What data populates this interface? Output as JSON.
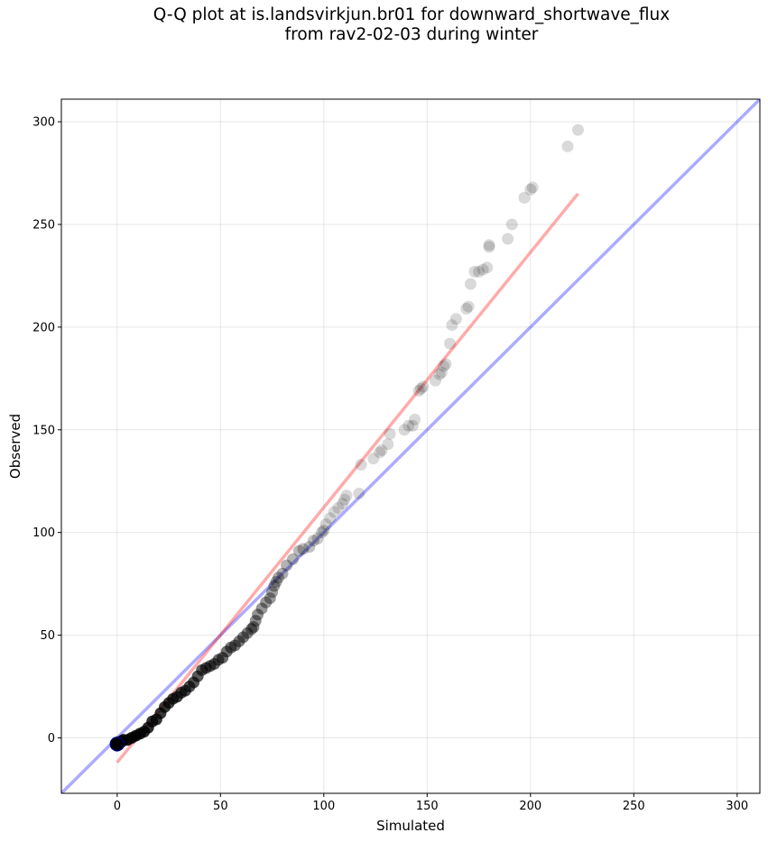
{
  "chart_data": {
    "type": "scatter",
    "title_line1": "Q-Q plot at is.landsvirkjun.br01 for downward_shortwave_flux",
    "title_line2": "from rav2-02-03 during winter",
    "xlabel": "Simulated",
    "ylabel": "Observed",
    "xlim": [
      -27,
      311
    ],
    "ylim": [
      -27,
      311
    ],
    "xticks": [
      "0",
      "50",
      "100",
      "150",
      "200",
      "250",
      "300"
    ],
    "yticks": [
      "0",
      "50",
      "100",
      "150",
      "200",
      "250",
      "300"
    ],
    "tick_values": [
      0,
      50,
      100,
      150,
      200,
      250,
      300
    ],
    "grid": true,
    "reference_line": {
      "color": "#0000ff",
      "slope": 1,
      "intercept": 0
    },
    "fit_line": {
      "color": "#ff0000",
      "x": [
        0,
        223
      ],
      "y": [
        -12,
        265
      ]
    },
    "points": {
      "x": [
        0,
        1,
        2,
        3,
        5,
        7,
        9,
        11,
        13,
        15,
        17,
        19,
        21,
        23,
        25,
        27,
        29,
        31,
        33,
        35,
        37,
        39,
        41,
        43,
        45,
        47,
        49,
        51,
        53,
        55,
        57,
        59,
        61,
        63,
        65,
        66,
        67,
        68,
        70,
        72,
        74,
        75,
        76,
        77,
        78,
        80,
        82,
        85,
        88,
        90,
        93,
        95,
        97,
        99,
        100,
        101,
        103,
        105,
        107,
        109,
        110,
        111,
        117,
        118,
        124,
        127,
        128,
        131,
        132,
        139,
        141,
        143,
        144,
        146,
        147,
        148,
        154,
        156,
        157,
        158,
        159,
        161,
        162,
        164,
        169,
        170,
        171,
        173,
        175,
        177,
        179,
        180,
        180,
        189,
        191,
        197,
        200,
        201,
        218,
        223
      ],
      "y": [
        -3,
        -2,
        -2,
        -1,
        -1,
        0,
        1,
        2,
        3,
        5,
        8,
        9,
        12,
        15,
        17,
        19,
        20,
        22,
        23,
        25,
        27,
        30,
        33,
        34,
        35,
        36,
        38,
        39,
        42,
        44,
        45,
        47,
        49,
        51,
        53,
        54,
        57,
        60,
        63,
        66,
        68,
        71,
        74,
        76,
        78,
        80,
        84,
        87,
        91,
        92,
        93,
        96,
        97,
        100,
        101,
        104,
        107,
        110,
        112,
        114,
        116,
        118,
        119,
        133,
        136,
        139,
        140,
        143,
        148,
        150,
        152,
        152,
        155,
        169,
        170,
        171,
        174,
        177,
        178,
        181,
        182,
        192,
        201,
        204,
        209,
        210,
        221,
        227,
        227,
        228,
        229,
        239,
        240,
        243,
        250,
        263,
        267,
        268,
        288,
        296
      ]
    }
  }
}
